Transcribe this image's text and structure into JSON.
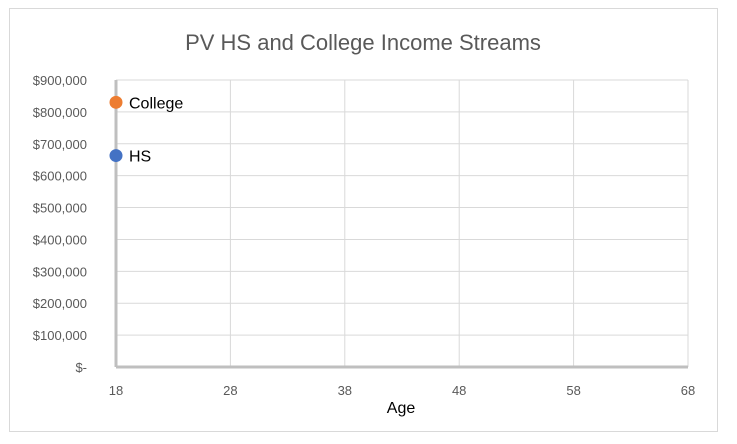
{
  "chart_data": {
    "type": "scatter",
    "title": "PV HS and College Income Streams",
    "xlabel": "Age",
    "ylabel": "",
    "xlim": [
      18,
      68
    ],
    "ylim": [
      0,
      900000
    ],
    "x_ticks": [
      18,
      28,
      38,
      48,
      58,
      68
    ],
    "y_ticks": [
      0,
      100000,
      200000,
      300000,
      400000,
      500000,
      600000,
      700000,
      800000,
      900000
    ],
    "x_tick_labels": [
      "18",
      "28",
      "38",
      "48",
      "58",
      "68"
    ],
    "y_tick_labels": [
      "$-",
      "$100,000",
      "$200,000",
      "$300,000",
      "$400,000",
      "$500,000",
      "$600,000",
      "$700,000",
      "$800,000",
      "$900,000"
    ],
    "grid": true,
    "legend": "none",
    "series": [
      {
        "name": "College",
        "color": "#ed7d31",
        "points": [
          {
            "x": 18,
            "y": 830000,
            "label": "College"
          }
        ]
      },
      {
        "name": "HS",
        "color": "#4472c4",
        "points": [
          {
            "x": 18,
            "y": 663000,
            "label": "HS"
          }
        ]
      }
    ]
  }
}
